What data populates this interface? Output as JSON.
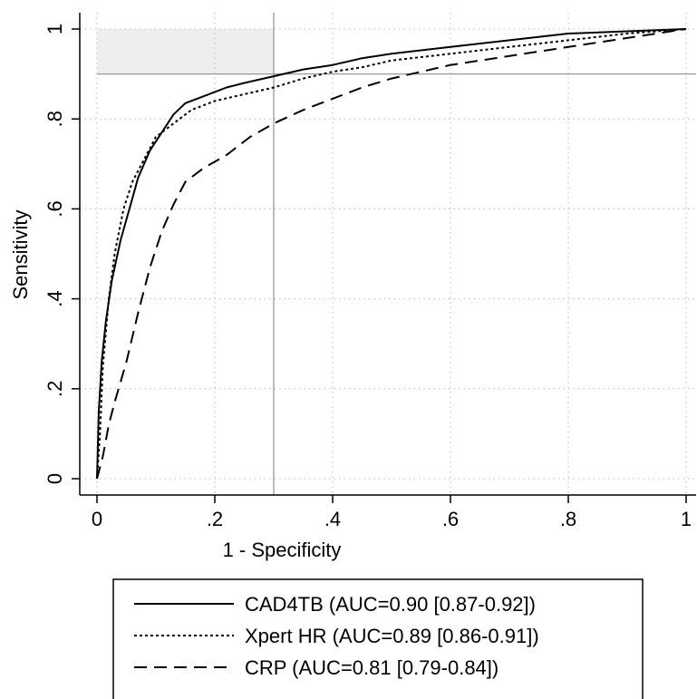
{
  "chart_data": {
    "type": "line",
    "xlabel": "1 - Specificity",
    "ylabel": "Sensitivity",
    "xlim": [
      0,
      1
    ],
    "ylim": [
      0,
      1
    ],
    "x_ticks": [
      0,
      0.2,
      0.4,
      0.6,
      0.8,
      1
    ],
    "x_tick_labels": [
      "0",
      ".2",
      ".4",
      ".6",
      ".8",
      "1"
    ],
    "y_ticks": [
      0,
      0.2,
      0.4,
      0.6,
      0.8,
      1
    ],
    "y_tick_labels": [
      "0",
      ".2",
      ".4",
      ".6",
      ".8",
      "1"
    ],
    "grid": true,
    "legend_position": "bottom",
    "reference_lines": {
      "x": 0.3,
      "y": 0.9
    },
    "shaded_region": {
      "x": [
        0,
        0.3
      ],
      "y": [
        0.9,
        1
      ],
      "color": "#eeeeee"
    },
    "series": [
      {
        "name": "CAD4TB (AUC=0.90 [0.87-0.92])",
        "line_style": "solid",
        "color": "#000000",
        "points": [
          [
            0,
            0
          ],
          [
            0.003,
            0.15
          ],
          [
            0.008,
            0.26
          ],
          [
            0.015,
            0.35
          ],
          [
            0.025,
            0.44
          ],
          [
            0.04,
            0.53
          ],
          [
            0.055,
            0.6
          ],
          [
            0.07,
            0.67
          ],
          [
            0.09,
            0.73
          ],
          [
            0.11,
            0.77
          ],
          [
            0.13,
            0.81
          ],
          [
            0.15,
            0.835
          ],
          [
            0.18,
            0.85
          ],
          [
            0.2,
            0.86
          ],
          [
            0.22,
            0.87
          ],
          [
            0.25,
            0.88
          ],
          [
            0.3,
            0.895
          ],
          [
            0.35,
            0.91
          ],
          [
            0.4,
            0.92
          ],
          [
            0.45,
            0.935
          ],
          [
            0.5,
            0.945
          ],
          [
            0.6,
            0.96
          ],
          [
            0.7,
            0.975
          ],
          [
            0.8,
            0.99
          ],
          [
            0.9,
            0.995
          ],
          [
            1,
            1
          ]
        ]
      },
      {
        "name": "Xpert HR (AUC=0.89 [0.86-0.91])",
        "line_style": "dotted",
        "color": "#000000",
        "points": [
          [
            0,
            0
          ],
          [
            0.005,
            0.1
          ],
          [
            0.01,
            0.25
          ],
          [
            0.02,
            0.4
          ],
          [
            0.03,
            0.5
          ],
          [
            0.045,
            0.6
          ],
          [
            0.06,
            0.66
          ],
          [
            0.08,
            0.71
          ],
          [
            0.1,
            0.76
          ],
          [
            0.13,
            0.79
          ],
          [
            0.16,
            0.82
          ],
          [
            0.2,
            0.84
          ],
          [
            0.25,
            0.855
          ],
          [
            0.3,
            0.87
          ],
          [
            0.35,
            0.89
          ],
          [
            0.4,
            0.905
          ],
          [
            0.45,
            0.915
          ],
          [
            0.5,
            0.93
          ],
          [
            0.6,
            0.945
          ],
          [
            0.7,
            0.96
          ],
          [
            0.8,
            0.975
          ],
          [
            0.9,
            0.99
          ],
          [
            1,
            1
          ]
        ]
      },
      {
        "name": "CRP (AUC=0.81 [0.79-0.84])",
        "line_style": "dashed",
        "color": "#000000",
        "points": [
          [
            0,
            0
          ],
          [
            0.01,
            0.05
          ],
          [
            0.02,
            0.12
          ],
          [
            0.03,
            0.17
          ],
          [
            0.05,
            0.26
          ],
          [
            0.07,
            0.37
          ],
          [
            0.09,
            0.47
          ],
          [
            0.11,
            0.55
          ],
          [
            0.13,
            0.61
          ],
          [
            0.15,
            0.66
          ],
          [
            0.18,
            0.69
          ],
          [
            0.22,
            0.72
          ],
          [
            0.26,
            0.76
          ],
          [
            0.3,
            0.79
          ],
          [
            0.35,
            0.82
          ],
          [
            0.4,
            0.845
          ],
          [
            0.45,
            0.87
          ],
          [
            0.5,
            0.89
          ],
          [
            0.6,
            0.92
          ],
          [
            0.7,
            0.94
          ],
          [
            0.8,
            0.96
          ],
          [
            0.9,
            0.98
          ],
          [
            1,
            1
          ]
        ]
      }
    ]
  }
}
